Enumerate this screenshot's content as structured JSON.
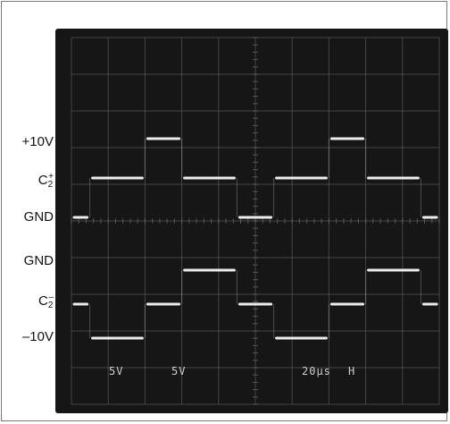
{
  "labels": {
    "plus10v": "+10V",
    "c2plus_base": "C",
    "c2plus_sub": "2",
    "c2plus_sup": "+",
    "gnd1": "GND",
    "gnd2": "GND",
    "c2minus_base": "C",
    "c2minus_sub": "2",
    "c2minus_sup": "–",
    "minus10v": "–10V"
  },
  "readouts": {
    "ch1": "5V",
    "ch2": "5V",
    "timebase": "20µs",
    "trigger": "H"
  },
  "colors": {
    "screen": "#161616",
    "trace": "#ececec",
    "grid": "#6a6a6a"
  },
  "chart_data": {
    "type": "line",
    "grid": true,
    "xlim": [
      0,
      200
    ],
    "x_unit": "µs",
    "series": [
      {
        "name": "C2+",
        "x": [
          0,
          10,
          10,
          40,
          40,
          60,
          60,
          90,
          90,
          110,
          110,
          140,
          140,
          160,
          160,
          190,
          190,
          200
        ],
        "values": [
          0,
          0,
          5,
          5,
          10,
          10,
          5,
          5,
          0,
          0,
          5,
          5,
          10,
          10,
          5,
          5,
          0,
          0
        ]
      },
      {
        "name": "C2-",
        "x": [
          0,
          10,
          10,
          40,
          40,
          60,
          60,
          90,
          90,
          110,
          110,
          140,
          140,
          160,
          160,
          190,
          190,
          200
        ],
        "values": [
          0,
          0,
          -5,
          -5,
          0,
          0,
          5,
          5,
          0,
          0,
          -5,
          -5,
          0,
          0,
          5,
          5,
          0,
          0
        ]
      }
    ]
  }
}
